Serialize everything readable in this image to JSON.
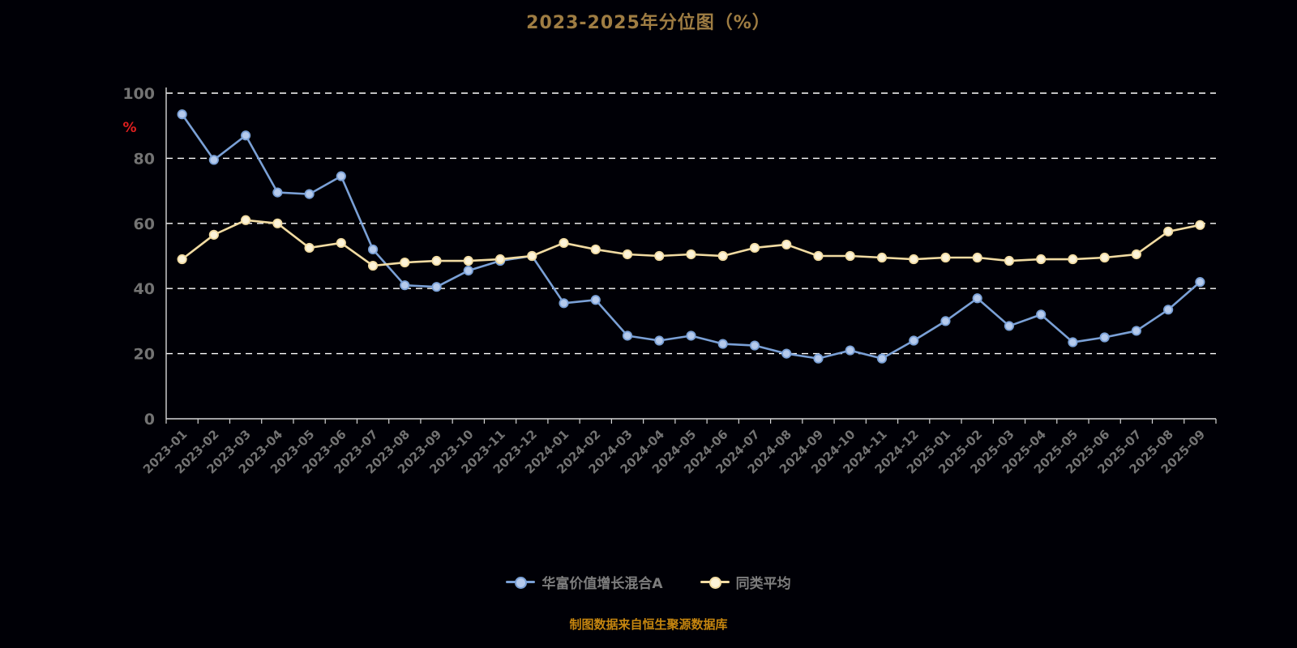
{
  "title": "2023-2025年分位图（%）",
  "source_note": "制图数据来自恒生聚源数据库",
  "y_unit_label": "%",
  "legend": [
    {
      "id": "fund",
      "label": "华富价值增长混合A"
    },
    {
      "id": "peer",
      "label": "同类平均"
    }
  ],
  "colors": {
    "background": "#000006",
    "title": "#9f7d43",
    "source": "#c5850f",
    "axis_label": "#737373",
    "axis_line": "#d6d6d6",
    "gridline": "#ffffff",
    "unit_label": "#e01f1f",
    "legend_text": "#7d7d7d",
    "fund_line": "#7aa0d6",
    "fund_fill": "#b5caec",
    "peer_line": "#f1dba2",
    "peer_fill": "#fcf3d8"
  },
  "chart_data": {
    "type": "line",
    "title": "2023-2025年分位图（%）",
    "xlabel": "",
    "ylabel": "%",
    "ylim": [
      0,
      100
    ],
    "yticks": [
      0,
      20,
      40,
      60,
      80,
      100
    ],
    "grid": "dashed-horizontal",
    "legend_position": "bottom",
    "categories": [
      "2023-01",
      "2023-02",
      "2023-03",
      "2023-04",
      "2023-05",
      "2023-06",
      "2023-07",
      "2023-08",
      "2023-09",
      "2023-10",
      "2023-11",
      "2023-12",
      "2024-01",
      "2024-02",
      "2024-03",
      "2024-04",
      "2024-05",
      "2024-06",
      "2024-07",
      "2024-08",
      "2024-09",
      "2024-10",
      "2024-11",
      "2024-12",
      "2025-01",
      "2025-02",
      "2025-03",
      "2025-04",
      "2025-05",
      "2025-06",
      "2025-07",
      "2025-08",
      "2025-09"
    ],
    "series": [
      {
        "id": "fund",
        "name": "华富价值增长混合A",
        "values": [
          93.5,
          79.5,
          87,
          69.5,
          69,
          74.5,
          52,
          41,
          40.5,
          45.5,
          48.5,
          50,
          35.5,
          36.5,
          25.5,
          24,
          25.5,
          23,
          22.5,
          20,
          18.5,
          21,
          18.5,
          24,
          30,
          37,
          28.5,
          32,
          23.5,
          25,
          27,
          33.5,
          42
        ]
      },
      {
        "id": "peer",
        "name": "同类平均",
        "values": [
          49,
          56.5,
          61,
          60,
          52.5,
          54,
          47,
          48,
          48.5,
          48.5,
          49,
          50,
          54,
          52,
          50.5,
          50,
          50.5,
          50,
          52.5,
          53.5,
          50,
          50,
          49.5,
          49,
          49.5,
          49.5,
          48.5,
          49,
          49,
          49.5,
          50.5,
          57.5,
          59.5
        ]
      }
    ]
  }
}
